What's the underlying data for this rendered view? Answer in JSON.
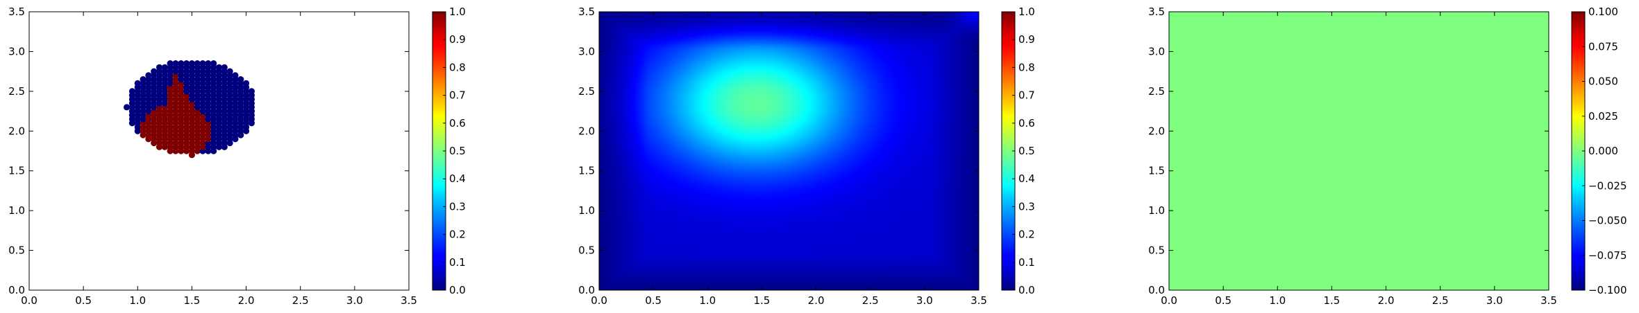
{
  "chart_data": [
    {
      "type": "scatter",
      "title": "",
      "xlabel": "",
      "ylabel": "",
      "xlim": [
        0,
        3.5
      ],
      "ylim": [
        0,
        3.5
      ],
      "xticks": [
        "0.0",
        "0.5",
        "1.0",
        "1.5",
        "2.0",
        "2.5",
        "3.0",
        "3.5"
      ],
      "yticks": [
        "0.0",
        "0.5",
        "1.0",
        "1.5",
        "2.0",
        "2.5",
        "3.0",
        "3.5"
      ],
      "grid": false,
      "colormap": "jet",
      "color_range": [
        0,
        1
      ],
      "colorbar_ticks": [
        "0.0",
        "0.1",
        "0.2",
        "0.3",
        "0.4",
        "0.5",
        "0.6",
        "0.7",
        "0.8",
        "0.9",
        "1.0"
      ],
      "point_color_low": "#00007f",
      "point_color_high": "#7f0000",
      "point_value_low": 0.0,
      "point_value_high": 1.0,
      "cluster": {
        "x_range": [
          0.9,
          2.1
        ],
        "y_range": [
          1.65,
          2.85
        ],
        "center": [
          1.5,
          2.3
        ],
        "spacing": 0.05,
        "red_center": [
          1.35,
          2.0
        ]
      }
    },
    {
      "type": "heatmap",
      "title": "",
      "xlabel": "",
      "ylabel": "",
      "xlim": [
        0,
        3.5
      ],
      "ylim": [
        0,
        3.5
      ],
      "xticks": [
        "0.0",
        "0.5",
        "1.0",
        "1.5",
        "2.0",
        "2.5",
        "3.0",
        "3.5"
      ],
      "yticks": [
        "0.0",
        "0.5",
        "1.0",
        "1.5",
        "2.0",
        "2.5",
        "3.0",
        "3.5"
      ],
      "grid": false,
      "colormap": "jet",
      "color_range": [
        0,
        1
      ],
      "colorbar_ticks": [
        "0.0",
        "0.1",
        "0.2",
        "0.3",
        "0.4",
        "0.5",
        "0.6",
        "0.7",
        "0.8",
        "0.9",
        "1.0"
      ],
      "peak": {
        "x": 1.45,
        "y": 2.35,
        "value": 0.47
      },
      "edge_value": 0.02
    },
    {
      "type": "heatmap",
      "title": "",
      "xlabel": "",
      "ylabel": "",
      "xlim": [
        0,
        3.5
      ],
      "ylim": [
        0,
        3.5
      ],
      "xticks": [
        "0.0",
        "0.5",
        "1.0",
        "1.5",
        "2.0",
        "2.5",
        "3.0",
        "3.5"
      ],
      "yticks": [
        "0.0",
        "0.5",
        "1.0",
        "1.5",
        "2.0",
        "2.5",
        "3.0",
        "3.5"
      ],
      "grid": false,
      "colormap": "jet",
      "color_range": [
        -0.1,
        0.1
      ],
      "colorbar_ticks": [
        "−0.100",
        "−0.075",
        "−0.050",
        "−0.025",
        "0.000",
        "0.025",
        "0.050",
        "0.075",
        "0.100"
      ],
      "uniform_value": 0.0,
      "fill_color": "#7fff7f"
    }
  ]
}
